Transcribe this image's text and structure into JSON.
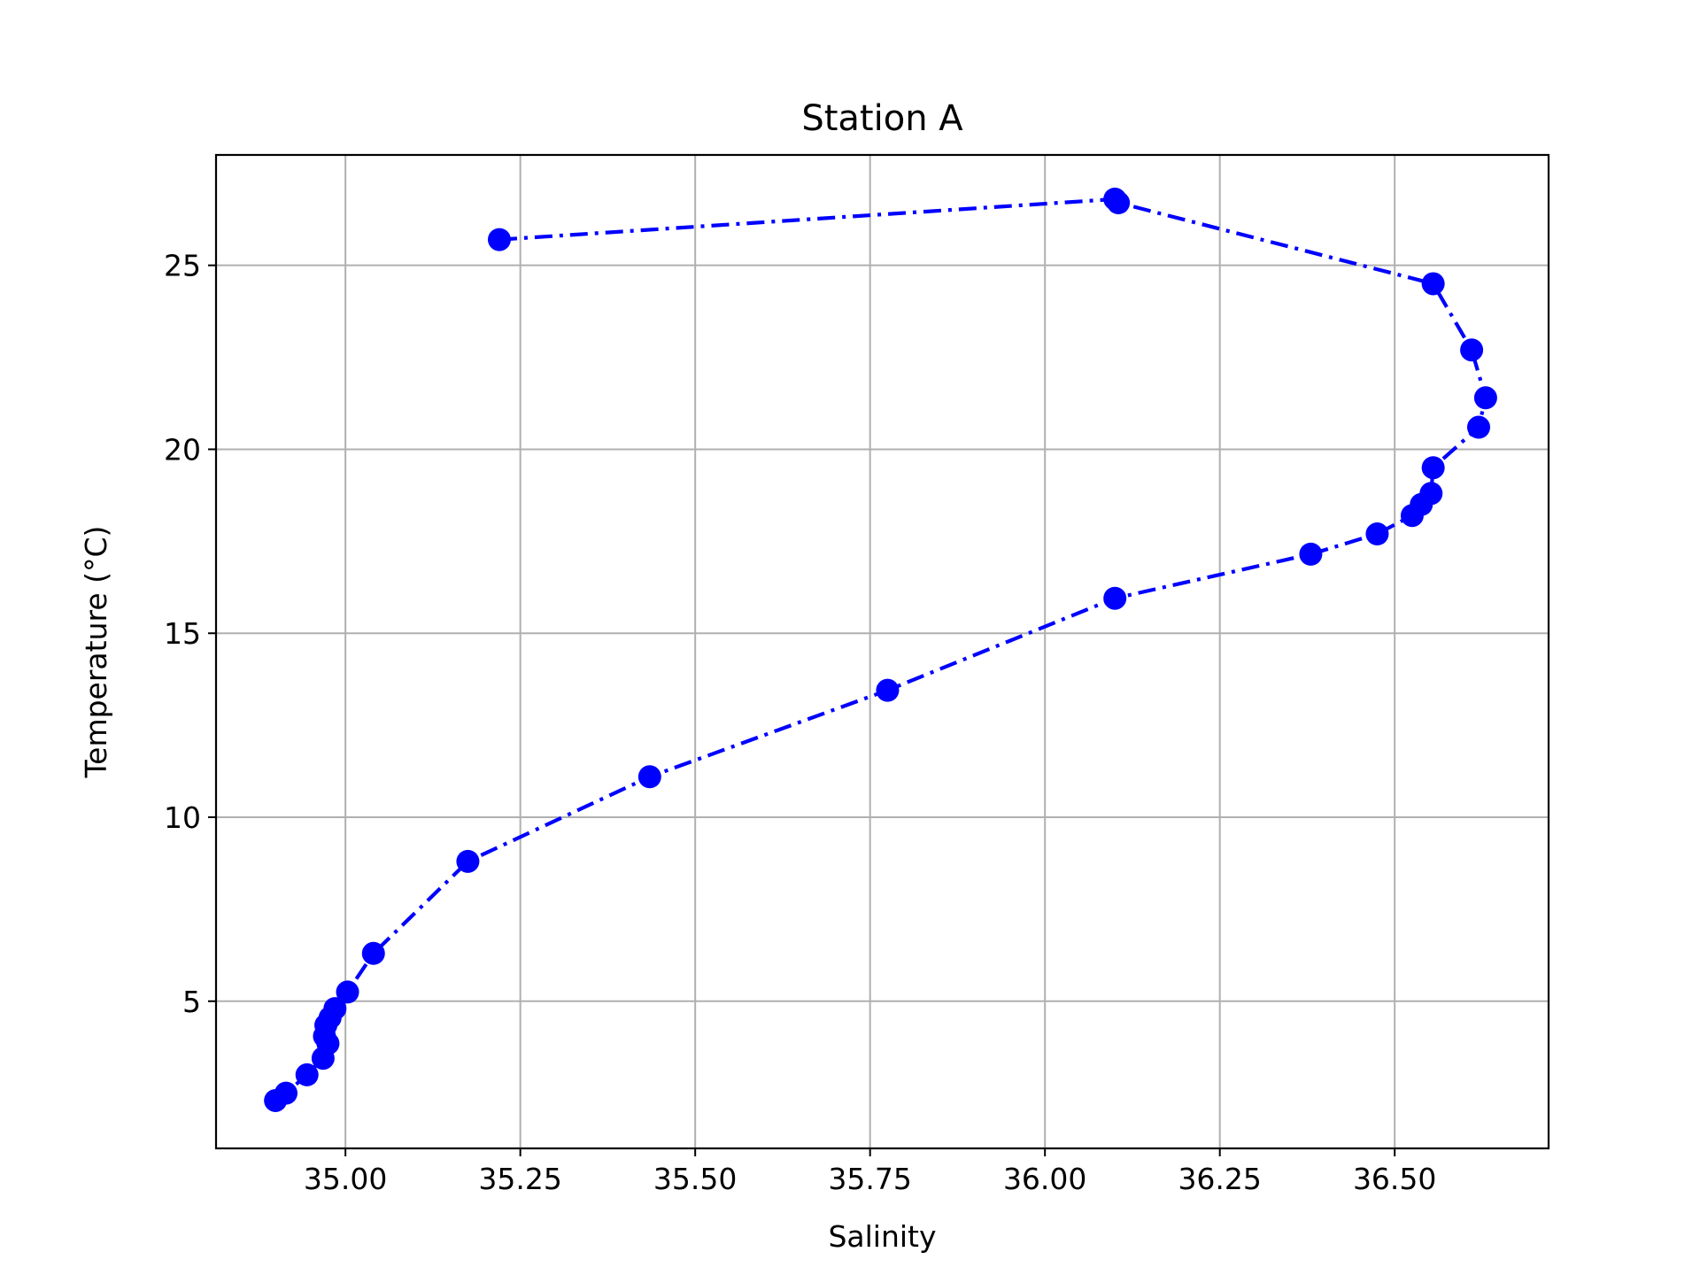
{
  "chart_data": {
    "type": "line",
    "title": "Station A",
    "xlabel": "Salinity",
    "ylabel": "Temperature (°C)",
    "xlim": [
      34.815,
      36.72
    ],
    "ylim": [
      1.0,
      28.0
    ],
    "xticks": [
      35.0,
      35.25,
      35.5,
      35.75,
      36.0,
      36.25,
      36.5
    ],
    "xtick_labels": [
      "35.00",
      "35.25",
      "35.50",
      "35.75",
      "36.00",
      "36.25",
      "36.50"
    ],
    "yticks": [
      5,
      10,
      15,
      20,
      25
    ],
    "ytick_labels": [
      "5",
      "10",
      "15",
      "20",
      "25"
    ],
    "grid": true,
    "line_style": "dash-dot",
    "marker": "circle",
    "color": "#0000ff",
    "series": [
      {
        "x": [
          35.22,
          36.1,
          36.105,
          36.555,
          36.61,
          36.63,
          36.62,
          36.555,
          36.552,
          36.538,
          36.525,
          36.475,
          36.38,
          36.1,
          35.775,
          35.435,
          35.175,
          35.04,
          35.003,
          34.985,
          34.978,
          34.972,
          34.975,
          34.97,
          34.968,
          34.945,
          34.915,
          34.9
        ],
        "y": [
          25.7,
          26.8,
          26.7,
          24.5,
          22.7,
          21.4,
          20.6,
          19.5,
          18.8,
          18.5,
          18.2,
          17.7,
          17.15,
          15.95,
          13.45,
          11.1,
          8.8,
          6.3,
          5.25,
          4.8,
          4.55,
          4.35,
          3.85,
          4.05,
          3.45,
          3.0,
          2.5,
          2.3
        ]
      }
    ]
  }
}
